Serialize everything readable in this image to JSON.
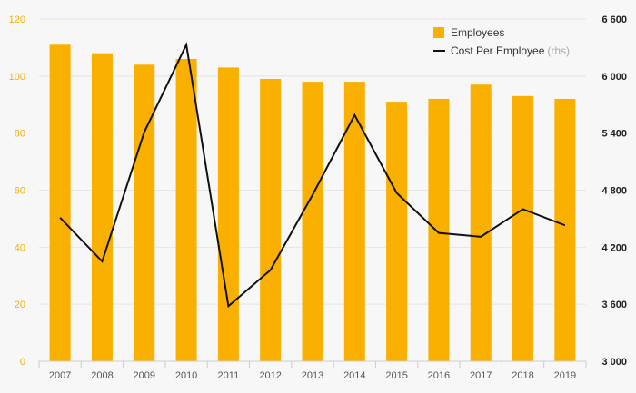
{
  "chart_data": {
    "type": "bar",
    "categories": [
      "2007",
      "2008",
      "2009",
      "2010",
      "2011",
      "2012",
      "2013",
      "2014",
      "2015",
      "2016",
      "2017",
      "2018",
      "2019"
    ],
    "series": [
      {
        "name": "Employees",
        "type": "bar",
        "axis": "left",
        "color": "#f9b000",
        "values": [
          111,
          108,
          104,
          106,
          103,
          99,
          98,
          98,
          91,
          92,
          97,
          93,
          92
        ]
      },
      {
        "name": "Cost Per Employee",
        "type": "line",
        "axis": "right",
        "color": "#111111",
        "values": [
          4510,
          4050,
          5410,
          6330,
          3580,
          3960,
          4750,
          5590,
          4770,
          4350,
          4310,
          4600,
          4430
        ]
      }
    ],
    "y_left": {
      "lim": [
        0,
        120
      ],
      "ticks": [
        0,
        20,
        40,
        60,
        80,
        100,
        120
      ],
      "tick_labels": [
        "0",
        "20",
        "40",
        "60",
        "80",
        "100",
        "120"
      ],
      "color": "#f9b000"
    },
    "y_right": {
      "lim": [
        3000,
        6600
      ],
      "ticks": [
        3000,
        3600,
        4200,
        4800,
        5400,
        6000,
        6600
      ],
      "tick_labels": [
        "3 000",
        "3 600",
        "4 200",
        "4 800",
        "5 400",
        "6 000",
        "6 600"
      ],
      "color": "#222222"
    },
    "legend": {
      "position": "top-right",
      "items": [
        {
          "label": "Employees",
          "suffix": ""
        },
        {
          "label": "Cost Per Employee",
          "suffix": "(rhs)"
        }
      ]
    },
    "grid": true
  }
}
